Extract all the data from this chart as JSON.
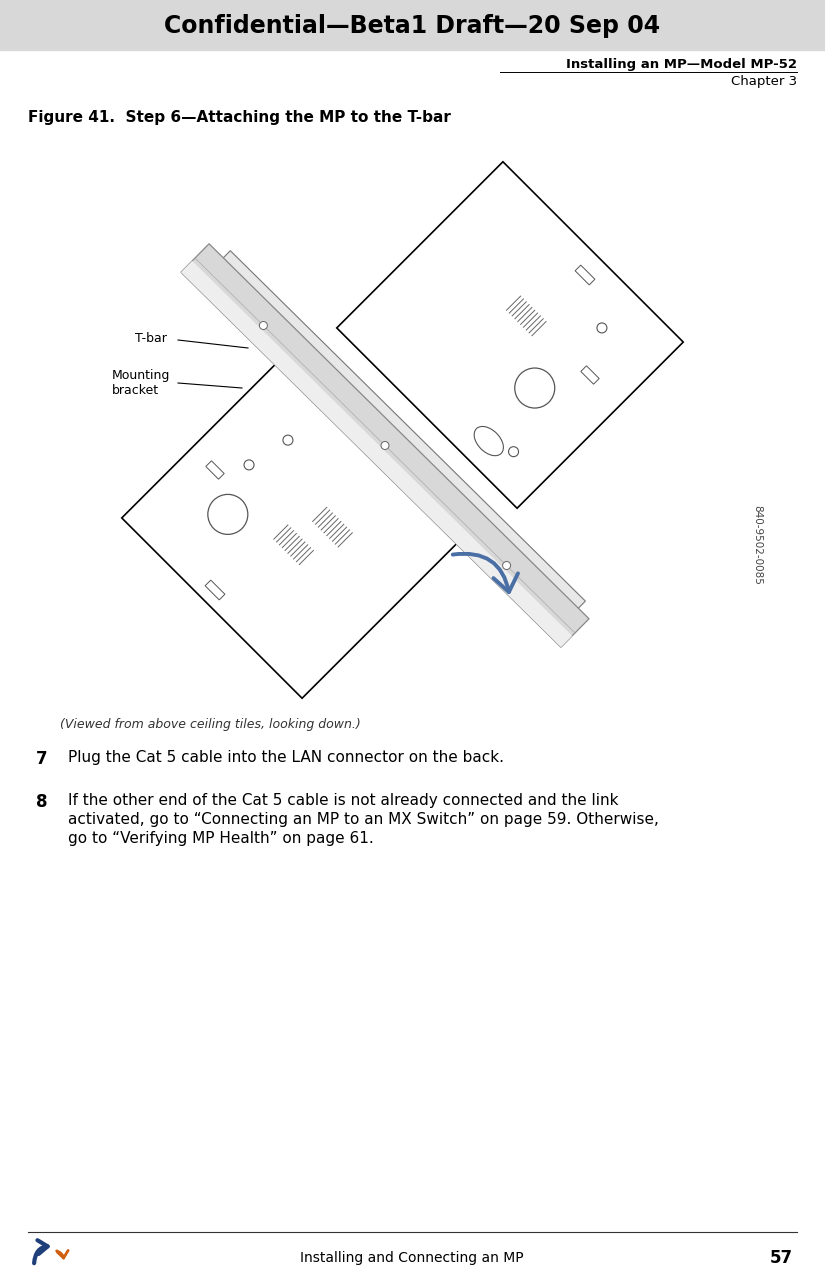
{
  "header_bg": "#d8d8d8",
  "header_text": "Confidential—Beta1 Draft—20 Sep 04",
  "header_text_color": "#000000",
  "subheader_line1": "Installing an MP—Model MP-52",
  "subheader_line2": "Chapter 3",
  "figure_caption": "Figure 41.  Step 6—Attaching the MP to the T-bar",
  "callout_tbar": "T-bar",
  "callout_bracket": "Mounting\nbracket",
  "caption_below": "(Viewed from above ceiling tiles, looking down.)",
  "part_number": "840-9502-0085",
  "step7_num": "7",
  "step7_text": "Plug the Cat 5 cable into the LAN connector on the back.",
  "step8_num": "8",
  "step8_line1": "If the other end of the Cat 5 cable is not already connected and the link",
  "step8_line2": "activated, go to “Connecting an MP to an MX Switch” on page 59. Otherwise,",
  "step8_line3": "go to “Verifying MP Health” on page 61.",
  "footer_text": "Installing and Connecting an MP",
  "footer_page": "57",
  "arrow_color": "#4a6fa5",
  "bg_color": "#ffffff",
  "panel_edge": "#000000",
  "panel_face": "#ffffff",
  "tbar_face": "#d4d4d4",
  "tbar_edge": "#888888",
  "detail_edge": "#555555"
}
